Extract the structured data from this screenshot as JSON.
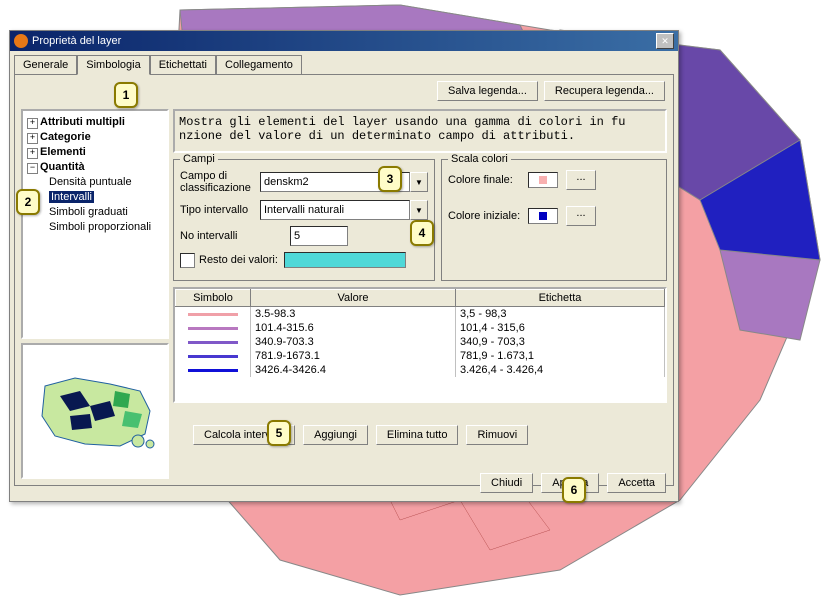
{
  "window": {
    "title": "Proprietà del layer"
  },
  "tabs": {
    "t0": "Generale",
    "t1": "Simbologia",
    "t2": "Etichettati",
    "t3": "Collegamento"
  },
  "legend": {
    "save": "Salva legenda...",
    "load": "Recupera legenda..."
  },
  "tree": {
    "n0": "Attributi multipli",
    "n1": "Categorie",
    "n2": "Elementi",
    "n3": "Quantità",
    "c0": "Densità puntuale",
    "c1": "Intervalli",
    "c2": "Simboli graduati",
    "c3": "Simboli proporzionali"
  },
  "desc": "Mostra gli elementi del layer usando una gamma di colori in fu\nnzione del valore di un determinato campo di attributi.",
  "campi": {
    "title": "Campi",
    "lbl_class": "Campo di classificazione",
    "val_class": "denskm2",
    "lbl_tipo": "Tipo intervallo",
    "val_tipo": "Intervalli naturali",
    "lbl_num": "No intervalli",
    "val_num": "5",
    "chk_resto": "Resto dei valori:"
  },
  "scala": {
    "title": "Scala colori",
    "lbl_fin": "Colore finale:",
    "lbl_ini": "Colore iniziale:",
    "col_fin": "#f8b0b0",
    "col_ini": "#0000c0",
    "dots": "..."
  },
  "table": {
    "h0": "Simbolo",
    "h1": "Valore",
    "h2": "Etichetta",
    "rows": [
      {
        "c": "#f0a0a8",
        "v": "3.5-98.3",
        "e": "3,5 - 98,3"
      },
      {
        "c": "#b878c0",
        "v": "101.4-315.6",
        "e": "101,4 - 315,6"
      },
      {
        "c": "#8058c8",
        "v": "340.9-703.3",
        "e": "340,9 - 703,3"
      },
      {
        "c": "#4838d0",
        "v": "781.9-1673.1",
        "e": "781,9 - 1.673,1"
      },
      {
        "c": "#1010d8",
        "v": "3426.4-3426.4",
        "e": "3.426,4 - 3.426,4"
      }
    ]
  },
  "actions": {
    "calc": "Calcola intervalli",
    "add": "Aggiungi",
    "delall": "Elimina tutto",
    "del": "Rimuovi"
  },
  "bottom": {
    "close": "Chiudi",
    "apply": "Applica",
    "ok": "Accetta"
  },
  "callouts": {
    "c1": "1",
    "c2": "2",
    "c3": "3",
    "c4": "4",
    "c5": "5",
    "c6": "6"
  },
  "map": {
    "colors": {
      "pink": "#f4a0a4",
      "purple": "#a878c0",
      "dpurple": "#6848a8",
      "blue": "#2020c0"
    }
  }
}
